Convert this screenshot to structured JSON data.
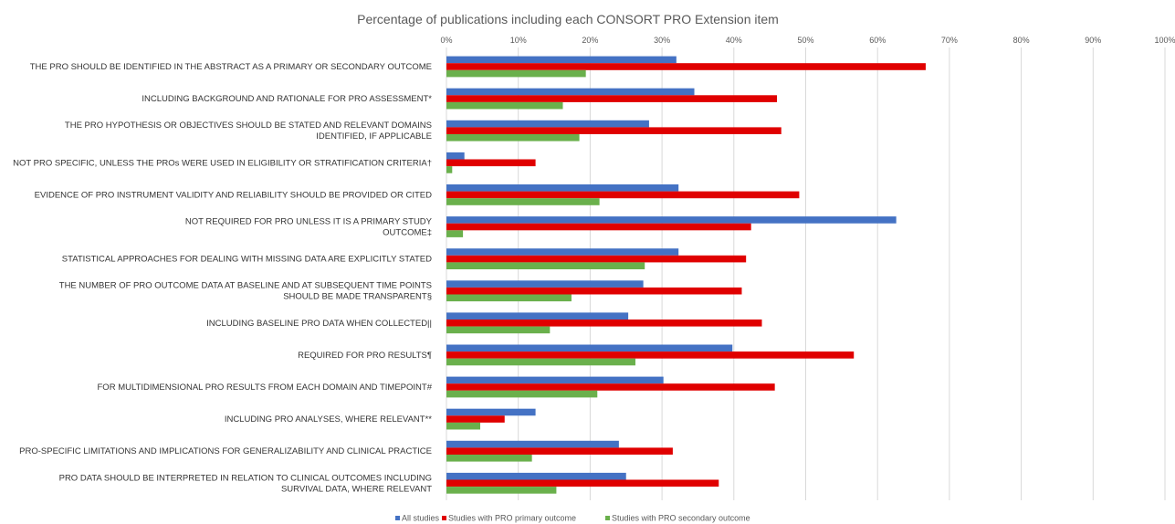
{
  "chart_data": {
    "type": "bar",
    "orientation": "horizontal",
    "title": "Percentage of publications including each CONSORT PRO Extension item",
    "xlim": [
      0,
      100
    ],
    "x_ticks": [
      "0%",
      "10%",
      "20%",
      "30%",
      "40%",
      "50%",
      "60%",
      "70%",
      "80%",
      "90%",
      "100%"
    ],
    "x_axis_position": "top",
    "grid": true,
    "legend_position": "bottom",
    "categories": [
      [
        "THE PRO SHOULD BE IDENTIFIED IN THE ABSTRACT AS A PRIMARY OR SECONDARY OUTCOME"
      ],
      [
        "INCLUDING BACKGROUND AND RATIONALE FOR PRO ASSESSMENT*"
      ],
      [
        "THE PRO HYPOTHESIS OR OBJECTIVES SHOULD BE STATED AND RELEVANT DOMAINS",
        "IDENTIFIED, IF APPLICABLE"
      ],
      [
        "NOT PRO SPECIFIC, UNLESS THE PROs WERE USED IN ELIGIBILITY OR STRATIFICATION CRITERIA†"
      ],
      [
        "EVIDENCE OF PRO INSTRUMENT VALIDITY AND RELIABILITY SHOULD BE PROVIDED OR CITED"
      ],
      [
        "NOT REQUIRED FOR PRO UNLESS IT IS A PRIMARY STUDY",
        "OUTCOME‡"
      ],
      [
        "STATISTICAL APPROACHES FOR DEALING WITH MISSING DATA ARE EXPLICITLY STATED"
      ],
      [
        "THE NUMBER OF PRO OUTCOME DATA AT BASELINE AND AT SUBSEQUENT TIME POINTS",
        "SHOULD BE MADE TRANSPARENT§"
      ],
      [
        "INCLUDING BASELINE PRO DATA WHEN COLLECTED||"
      ],
      [
        "REQUIRED FOR PRO RESULTS¶"
      ],
      [
        "FOR MULTIDIMENSIONAL PRO RESULTS FROM EACH DOMAIN AND TIMEPOINT#"
      ],
      [
        "INCLUDING PRO ANALYSES, WHERE RELEVANT**"
      ],
      [
        "PRO-SPECIFIC LIMITATIONS AND IMPLICATIONS FOR GENERALIZABILITY AND CLINICAL PRACTICE"
      ],
      [
        "PRO DATA SHOULD BE INTERPRETED IN RELATION TO CLINICAL OUTCOMES INCLUDING",
        "SURVIVAL DATA, WHERE RELEVANT"
      ]
    ],
    "series": [
      {
        "name": "All studies",
        "color": "#4472C4",
        "values": [
          32,
          34.5,
          28.2,
          2.5,
          32.3,
          62.6,
          32.3,
          27.4,
          25.3,
          39.8,
          30.2,
          12.4,
          24,
          25
        ]
      },
      {
        "name": "Studies with PRO primary outcome",
        "color": "#E00000",
        "values": [
          66.7,
          46,
          46.6,
          12.4,
          49.1,
          42.4,
          41.7,
          41.1,
          43.9,
          56.7,
          45.7,
          8.1,
          31.5,
          37.9
        ]
      },
      {
        "name": "Studies with PRO secondary outcome",
        "color": "#6AB04C",
        "values": [
          19.4,
          16.2,
          18.5,
          0.8,
          21.3,
          2.3,
          27.6,
          17.4,
          14.4,
          26.3,
          21,
          4.7,
          11.9,
          15.3
        ]
      }
    ]
  }
}
